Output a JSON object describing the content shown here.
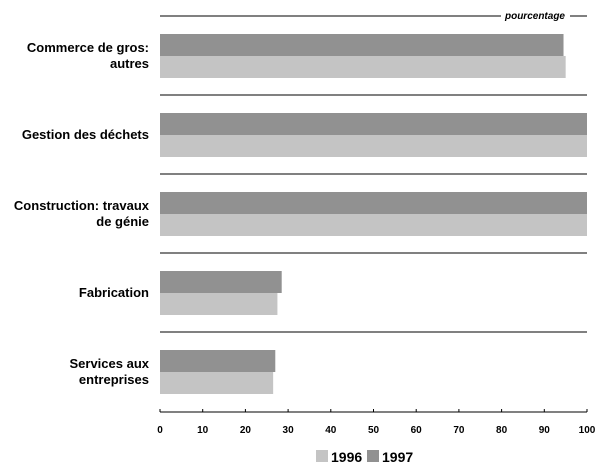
{
  "chart_data": {
    "type": "bar",
    "orientation": "horizontal",
    "unit_label": "pourcentage",
    "categories": [
      [
        "Commerce de gros:",
        "autres"
      ],
      [
        "Gestion des déchets"
      ],
      [
        "Construction: travaux",
        "de génie"
      ],
      [
        "Fabrication"
      ],
      [
        "Services aux",
        "entreprises"
      ]
    ],
    "series": [
      {
        "name": "1997",
        "color": "#919191",
        "values": [
          94.5,
          100,
          100,
          28.5,
          27
        ]
      },
      {
        "name": "1996",
        "color": "#c4c4c4",
        "values": [
          95,
          100,
          100,
          27.5,
          26.5
        ]
      }
    ],
    "xlim": [
      0,
      100
    ],
    "xticks": [
      "0",
      "10",
      "20",
      "30",
      "40",
      "50",
      "60",
      "70",
      "80",
      "90",
      "100"
    ],
    "legend": {
      "position": "bottom",
      "entries": [
        {
          "label": "1996",
          "color": "#c4c4c4"
        },
        {
          "label": "1997",
          "color": "#919191"
        }
      ]
    },
    "grid": false
  }
}
